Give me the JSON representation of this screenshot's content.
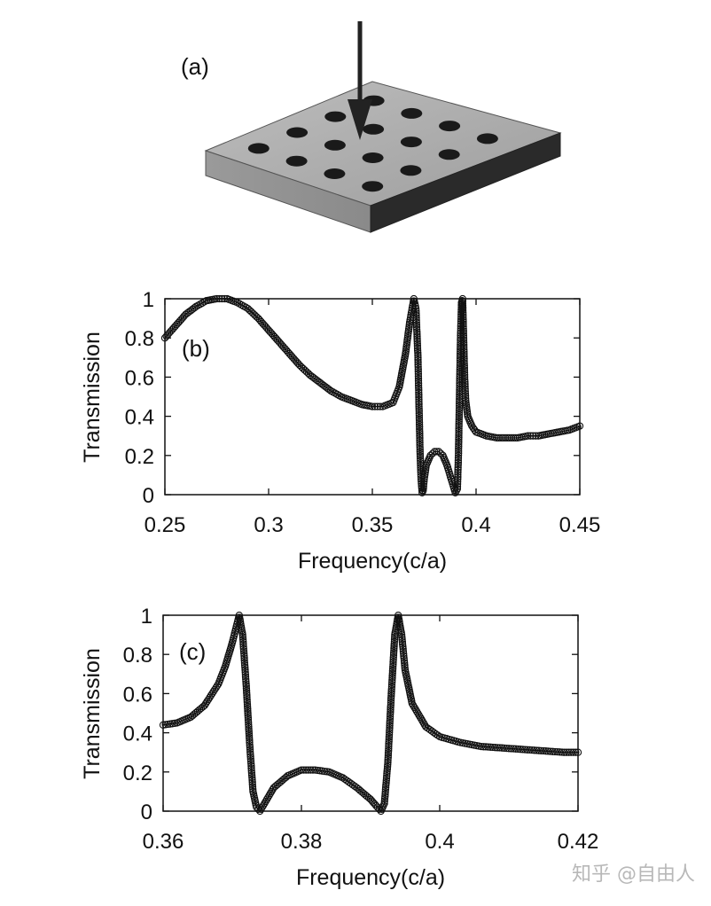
{
  "panel_a": {
    "label": "(a)"
  },
  "watermark": "知乎 @自由人",
  "chart_data": [
    {
      "type": "scatter",
      "panel_label": "(b)",
      "title": "",
      "xlabel": "Frequency(c/a)",
      "ylabel": "Transmission",
      "xlim": [
        0.25,
        0.45
      ],
      "ylim": [
        0,
        1
      ],
      "xticks": [
        "0.25",
        "0.3",
        "0.35",
        "0.4",
        "0.45"
      ],
      "yticks": [
        "0",
        "0.2",
        "0.4",
        "0.6",
        "0.8",
        "1"
      ],
      "grid": false,
      "marker": "open-circle",
      "line_color": "#111111",
      "series": [
        {
          "x": [
            0.25,
            0.255,
            0.26,
            0.265,
            0.27,
            0.275,
            0.28,
            0.285,
            0.29,
            0.295,
            0.3,
            0.305,
            0.31,
            0.315,
            0.32,
            0.325,
            0.33,
            0.335,
            0.34,
            0.345,
            0.35,
            0.355,
            0.36,
            0.363,
            0.366,
            0.368,
            0.37,
            0.371,
            0.372,
            0.3725,
            0.373,
            0.3735,
            0.374,
            0.3745,
            0.375,
            0.376,
            0.378,
            0.38,
            0.382,
            0.384,
            0.386,
            0.388,
            0.39,
            0.391,
            0.3915,
            0.392,
            0.3925,
            0.393,
            0.3935,
            0.394,
            0.3945,
            0.395,
            0.396,
            0.398,
            0.4,
            0.405,
            0.41,
            0.415,
            0.42,
            0.425,
            0.43,
            0.435,
            0.44,
            0.445,
            0.45
          ],
          "y": [
            0.8,
            0.86,
            0.92,
            0.96,
            0.99,
            1.0,
            1.0,
            0.98,
            0.95,
            0.9,
            0.84,
            0.78,
            0.72,
            0.66,
            0.61,
            0.57,
            0.53,
            0.5,
            0.48,
            0.46,
            0.45,
            0.45,
            0.47,
            0.55,
            0.72,
            0.88,
            1.0,
            0.95,
            0.7,
            0.45,
            0.22,
            0.08,
            0.01,
            0.02,
            0.08,
            0.15,
            0.2,
            0.22,
            0.22,
            0.2,
            0.15,
            0.08,
            0.01,
            0.03,
            0.2,
            0.5,
            0.8,
            0.98,
            1.0,
            0.8,
            0.6,
            0.48,
            0.4,
            0.35,
            0.32,
            0.3,
            0.29,
            0.29,
            0.29,
            0.3,
            0.3,
            0.31,
            0.32,
            0.33,
            0.35
          ]
        }
      ]
    },
    {
      "type": "scatter",
      "panel_label": "(c)",
      "title": "",
      "xlabel": "Frequency(c/a)",
      "ylabel": "Transmission",
      "xlim": [
        0.36,
        0.42
      ],
      "ylim": [
        0,
        1
      ],
      "xticks": [
        "0.36",
        "0.38",
        "0.4",
        "0.42"
      ],
      "yticks": [
        "0",
        "0.2",
        "0.4",
        "0.6",
        "0.8",
        "1"
      ],
      "grid": false,
      "marker": "open-circle",
      "line_color": "#111111",
      "series": [
        {
          "x": [
            0.36,
            0.362,
            0.364,
            0.366,
            0.368,
            0.369,
            0.37,
            0.3705,
            0.371,
            0.3715,
            0.372,
            0.3725,
            0.373,
            0.3735,
            0.374,
            0.375,
            0.376,
            0.378,
            0.38,
            0.382,
            0.384,
            0.386,
            0.388,
            0.39,
            0.391,
            0.3915,
            0.392,
            0.3925,
            0.393,
            0.3935,
            0.394,
            0.3945,
            0.395,
            0.396,
            0.398,
            0.4,
            0.403,
            0.406,
            0.41,
            0.414,
            0.418,
            0.42
          ],
          "y": [
            0.44,
            0.45,
            0.48,
            0.54,
            0.65,
            0.74,
            0.86,
            0.93,
            1.0,
            0.9,
            0.65,
            0.35,
            0.1,
            0.02,
            0.0,
            0.06,
            0.12,
            0.18,
            0.21,
            0.21,
            0.2,
            0.17,
            0.12,
            0.06,
            0.02,
            0.0,
            0.04,
            0.25,
            0.6,
            0.9,
            1.0,
            0.9,
            0.72,
            0.55,
            0.43,
            0.38,
            0.35,
            0.33,
            0.32,
            0.31,
            0.3,
            0.3
          ]
        }
      ]
    }
  ]
}
